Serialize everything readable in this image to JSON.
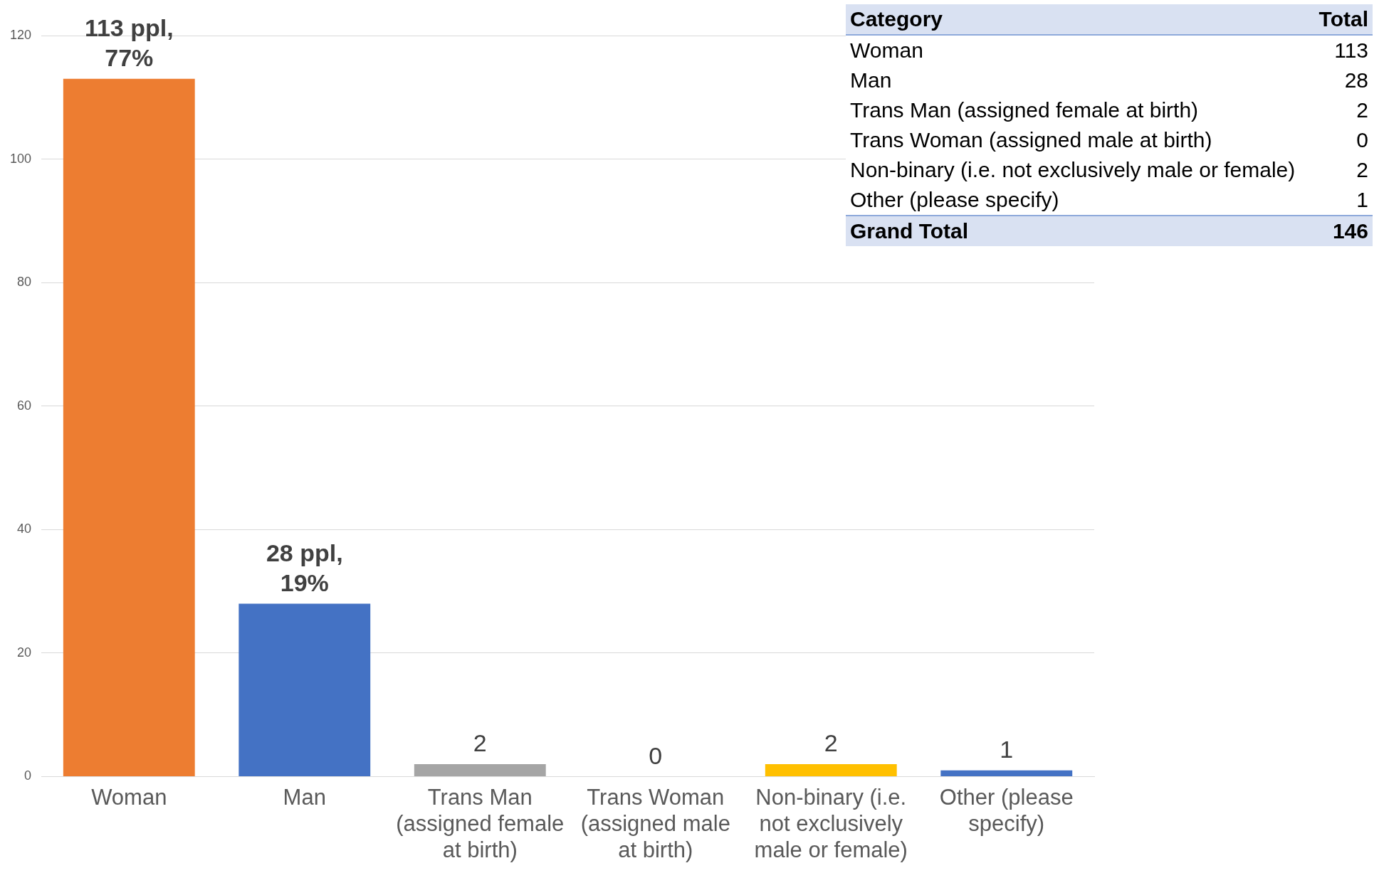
{
  "chart_data": {
    "type": "bar",
    "categories": [
      "Woman",
      "Man",
      "Trans Man (assigned female at birth)",
      "Trans Woman (assigned male at birth)",
      "Non-binary (i.e. not exclusively male or female)",
      "Other (please specify)"
    ],
    "values": [
      113,
      28,
      2,
      0,
      2,
      1
    ],
    "colors": [
      "#ed7d31",
      "#4472c4",
      "#a5a5a5",
      "#a5a5a5",
      "#ffc000",
      "#4472c4"
    ],
    "value_labels": [
      "113 ppl,\n77%",
      "28 ppl,\n19%",
      "2",
      "0",
      "2",
      "1"
    ],
    "ylim": [
      0,
      120
    ],
    "yticks": [
      0,
      20,
      40,
      60,
      80,
      100,
      120
    ],
    "grid": "y",
    "legend": false,
    "annotations": [
      "Category",
      "Total",
      "Woman",
      "113",
      "Man",
      "28",
      "Trans Man (assigned female at birth)",
      "2",
      "Trans Woman (assigned male at birth)",
      "0",
      "Non-binary (i.e. not exclusively male or female)",
      "2",
      "Other (please specify)",
      "1",
      "Grand Total",
      "146"
    ]
  }
}
